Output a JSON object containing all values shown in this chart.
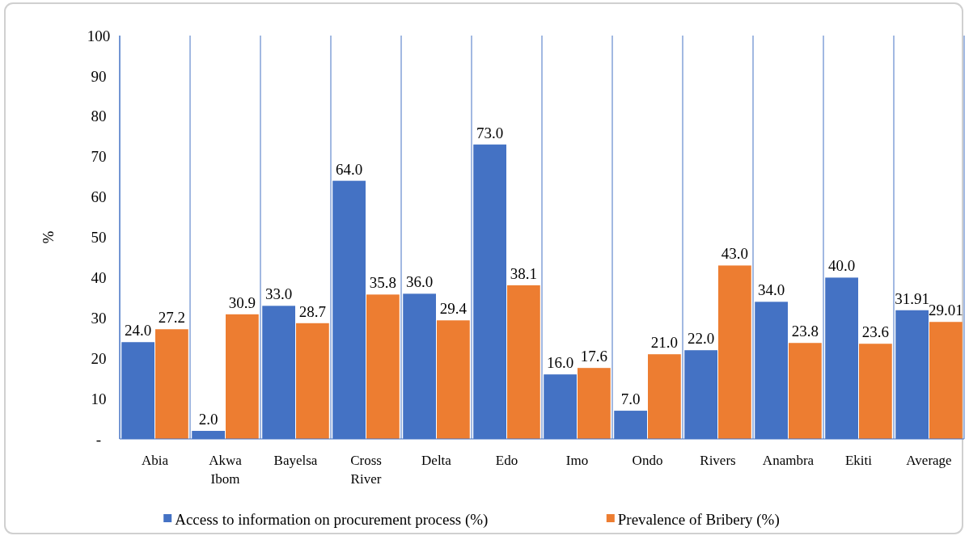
{
  "chart_data": {
    "type": "bar",
    "ylabel": "%",
    "categories": [
      "Abia",
      "Akwa Ibom",
      "Bayelsa",
      "Cross River",
      "Delta",
      "Edo",
      "Imo",
      "Ondo",
      "Rivers",
      "Anambra",
      "Ekiti",
      "Average"
    ],
    "series": [
      {
        "name": "Access to information on procurement process (%)",
        "color": "#4472c4",
        "values": [
          24,
          2,
          33,
          64,
          36,
          73,
          16,
          7,
          22,
          34,
          40,
          31.91
        ],
        "value_labels": [
          "24.0",
          "2.0",
          "33.0",
          "64.0",
          "36.0",
          "73.0",
          "16.0",
          "7.0",
          "22.0",
          "34.0",
          "40.0",
          "31.91"
        ]
      },
      {
        "name": "Prevalence of Bribery (%)",
        "color": "#ed7d31",
        "values": [
          27.2,
          30.9,
          28.7,
          35.8,
          29.4,
          38.1,
          17.6,
          21,
          43,
          23.8,
          23.6,
          29.01
        ],
        "value_labels": [
          "27.2",
          "30.9",
          "28.7",
          "35.8",
          "29.4",
          "38.1",
          "17.6",
          "21.0",
          "43.0",
          "23.8",
          "23.6",
          "29.01"
        ]
      }
    ],
    "ylim": [
      0,
      100
    ],
    "yticks": [
      {
        "value": 0,
        "label": "-"
      },
      10,
      20,
      30,
      40,
      50,
      60,
      70,
      80,
      90,
      100
    ],
    "grid": "x",
    "legend": "bottom"
  }
}
